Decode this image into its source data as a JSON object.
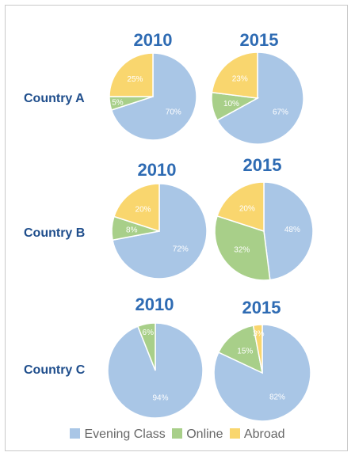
{
  "colors": {
    "evening": "#a9c6e6",
    "online": "#a8cf89",
    "abroad": "#f9d66e"
  },
  "legend": [
    {
      "label": "Evening Class",
      "color": "#a9c6e6"
    },
    {
      "label": "Online",
      "color": "#a8cf89"
    },
    {
      "label": "Abroad",
      "color": "#f9d66e"
    }
  ],
  "chart_data": [
    {
      "type": "pie",
      "country": "Country A",
      "year": "2010",
      "slices": [
        {
          "label": "Evening Class",
          "value": 70
        },
        {
          "label": "Online",
          "value": 5
        },
        {
          "label": "Abroad",
          "value": 25
        }
      ]
    },
    {
      "type": "pie",
      "country": "Country A",
      "year": "2015",
      "slices": [
        {
          "label": "Evening Class",
          "value": 67
        },
        {
          "label": "Online",
          "value": 10
        },
        {
          "label": "Abroad",
          "value": 23
        }
      ]
    },
    {
      "type": "pie",
      "country": "Country B",
      "year": "2010",
      "slices": [
        {
          "label": "Evening Class",
          "value": 72
        },
        {
          "label": "Online",
          "value": 8
        },
        {
          "label": "Abroad",
          "value": 20
        }
      ]
    },
    {
      "type": "pie",
      "country": "Country B",
      "year": "2015",
      "slices": [
        {
          "label": "Evening Class",
          "value": 48
        },
        {
          "label": "Online",
          "value": 32
        },
        {
          "label": "Abroad",
          "value": 20
        }
      ]
    },
    {
      "type": "pie",
      "country": "Country C",
      "year": "2010",
      "slices": [
        {
          "label": "Evening Class",
          "value": 94
        },
        {
          "label": "Online",
          "value": 6
        },
        {
          "label": "Abroad",
          "value": 0
        }
      ]
    },
    {
      "type": "pie",
      "country": "Country C",
      "year": "2015",
      "slices": [
        {
          "label": "Evening Class",
          "value": 82
        },
        {
          "label": "Online",
          "value": 15
        },
        {
          "label": "Abroad",
          "value": 3
        }
      ]
    }
  ]
}
